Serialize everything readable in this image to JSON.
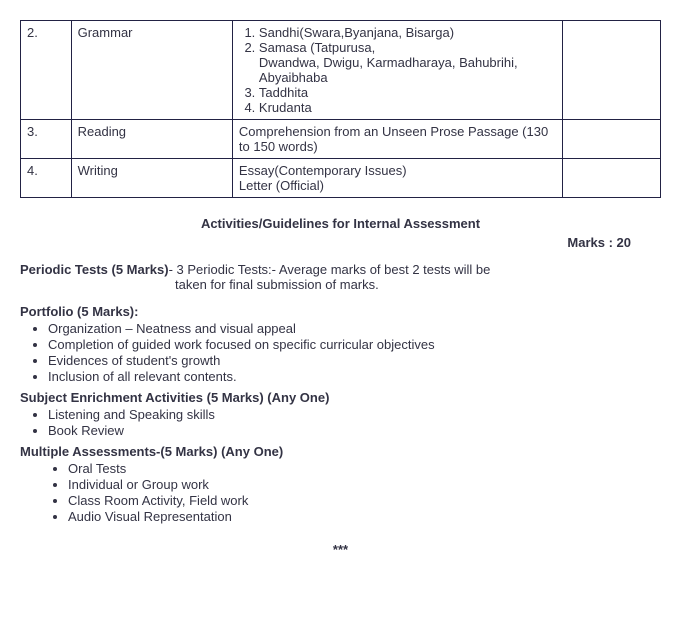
{
  "table": {
    "rows": [
      {
        "num": "2.",
        "topic": "Grammar",
        "items": [
          "Sandhi(Swara,Byanjana, Bisarga)",
          "Samasa (Tatpurusa,",
          "Taddhita",
          "Krudanta"
        ],
        "sub_after_2": "Dwandwa, Dwigu, Karmadharaya, Bahubrihi, Abyaibhaba"
      },
      {
        "num": "3.",
        "topic": "Reading",
        "detail": "Comprehension from an Unseen Prose Passage (130 to 150 words)"
      },
      {
        "num": "4.",
        "topic": "Writing",
        "detail_line1": "Essay(Contemporary Issues)",
        "detail_line2": "Letter (Official)"
      }
    ]
  },
  "assessment_title": "Activities/Guidelines for Internal Assessment",
  "marks_label": "Marks : 20",
  "periodic": {
    "label": "Periodic Tests (5 Marks)",
    "text1": "- 3 Periodic Tests:- Average marks of best 2 tests will be",
    "text2": "taken for final submission of marks."
  },
  "portfolio": {
    "title": "Portfolio (5 Marks):",
    "items": [
      "Organization – Neatness and visual appeal",
      "Completion of guided work focused on specific curricular objectives",
      "Evidences of student's growth",
      "Inclusion of all relevant contents."
    ]
  },
  "enrichment": {
    "title": "Subject Enrichment Activities (5 Marks)    (Any One)",
    "items": [
      "Listening and Speaking skills",
      "Book Review"
    ]
  },
  "multiple": {
    "title": "Multiple Assessments-(5 Marks)    (Any One)",
    "items": [
      "Oral Tests",
      "Individual or Group work",
      "Class Room Activity, Field work",
      "Audio Visual Representation"
    ]
  },
  "end": "***"
}
